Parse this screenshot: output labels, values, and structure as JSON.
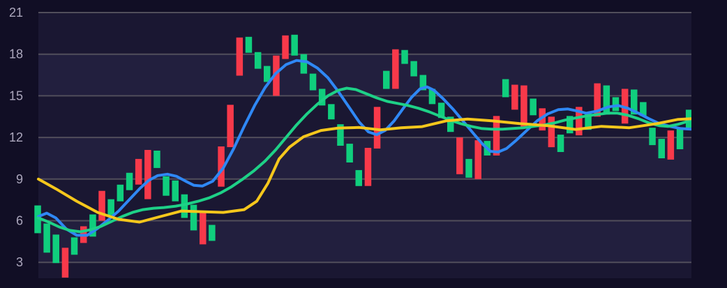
{
  "chart_data": {
    "type": "candlestick",
    "title": "",
    "legend": "none",
    "x_axis": {
      "labels_visible": false
    },
    "y_axis": {
      "side": "left",
      "ticks": [
        21,
        18,
        15,
        12,
        9,
        6,
        3
      ],
      "tick_labels": [
        "21",
        "18",
        "15",
        "12",
        "9",
        "6",
        "3"
      ],
      "min_visible": 1.85,
      "max_visible": 21,
      "grid": true
    },
    "colors": {
      "outer_background": "#110e25",
      "band_dark": "#1a1732",
      "band_light": "#221f3e",
      "gridline": "#514e5b",
      "candle_up_green": "#10ce7d",
      "candle_down_red": "#f8394a",
      "ma_fast_blue": "#2f88f5",
      "ma_mid_green": "#1ed187",
      "ma_slow_yellow": "#f5c71c",
      "axis_label": "#aca7bd"
    },
    "candles_note": "each candle = [body_bottom_value, body_top_value, color g|r]; no wicks drawn",
    "candles": [
      [
        5.1,
        7.1,
        "g"
      ],
      [
        3.7,
        5.8,
        "g"
      ],
      [
        2.95,
        5.0,
        "g"
      ],
      [
        1.9,
        4.05,
        "r"
      ],
      [
        3.55,
        4.8,
        "g"
      ],
      [
        4.4,
        5.6,
        "r"
      ],
      [
        4.85,
        6.45,
        "g"
      ],
      [
        6.0,
        8.15,
        "r"
      ],
      [
        6.4,
        7.55,
        "g"
      ],
      [
        7.4,
        8.6,
        "g"
      ],
      [
        8.2,
        9.45,
        "g"
      ],
      [
        8.6,
        10.45,
        "r"
      ],
      [
        7.55,
        11.1,
        "r"
      ],
      [
        9.8,
        11.05,
        "g"
      ],
      [
        7.8,
        9.2,
        "g"
      ],
      [
        7.4,
        8.9,
        "g"
      ],
      [
        6.2,
        7.9,
        "g"
      ],
      [
        5.3,
        7.15,
        "g"
      ],
      [
        4.3,
        6.6,
        "r"
      ],
      [
        4.55,
        5.7,
        "g"
      ],
      [
        8.45,
        11.35,
        "r"
      ],
      [
        11.3,
        14.35,
        "r"
      ],
      [
        16.45,
        19.2,
        "r"
      ],
      [
        18.1,
        19.25,
        "g"
      ],
      [
        16.95,
        18.15,
        "g"
      ],
      [
        16.0,
        17.15,
        "g"
      ],
      [
        15.0,
        17.9,
        "r"
      ],
      [
        17.65,
        19.35,
        "r"
      ],
      [
        17.9,
        19.4,
        "g"
      ],
      [
        16.6,
        18.0,
        "g"
      ],
      [
        15.4,
        16.6,
        "g"
      ],
      [
        14.3,
        15.5,
        "g"
      ],
      [
        13.3,
        14.4,
        "g"
      ],
      [
        11.4,
        12.95,
        "g"
      ],
      [
        10.2,
        11.55,
        "g"
      ],
      [
        8.5,
        9.65,
        "g"
      ],
      [
        8.5,
        11.25,
        "r"
      ],
      [
        11.2,
        14.2,
        "r"
      ],
      [
        15.5,
        16.8,
        "g"
      ],
      [
        15.5,
        18.35,
        "r"
      ],
      [
        17.3,
        18.3,
        "g"
      ],
      [
        16.4,
        17.5,
        "g"
      ],
      [
        15.4,
        16.5,
        "g"
      ],
      [
        14.4,
        15.5,
        "g"
      ],
      [
        13.4,
        14.5,
        "g"
      ],
      [
        12.4,
        13.5,
        "g"
      ],
      [
        9.35,
        12.0,
        "r"
      ],
      [
        9.1,
        10.45,
        "g"
      ],
      [
        9.0,
        11.8,
        "r"
      ],
      [
        10.7,
        11.75,
        "g"
      ],
      [
        10.7,
        13.55,
        "r"
      ],
      [
        14.9,
        16.2,
        "g"
      ],
      [
        14.0,
        15.8,
        "r"
      ],
      [
        12.7,
        15.75,
        "r"
      ],
      [
        13.6,
        14.8,
        "g"
      ],
      [
        12.5,
        14.1,
        "r"
      ],
      [
        11.3,
        13.5,
        "r"
      ],
      [
        10.95,
        12.2,
        "g"
      ],
      [
        12.3,
        13.55,
        "g"
      ],
      [
        12.15,
        14.2,
        "r"
      ],
      [
        12.55,
        13.8,
        "g"
      ],
      [
        13.5,
        15.9,
        "r"
      ],
      [
        13.65,
        15.75,
        "g"
      ],
      [
        13.9,
        14.9,
        "g"
      ],
      [
        13.0,
        15.5,
        "r"
      ],
      [
        13.65,
        15.45,
        "g"
      ],
      [
        13.55,
        14.55,
        "g"
      ],
      [
        11.45,
        12.7,
        "g"
      ],
      [
        10.5,
        11.9,
        "g"
      ],
      [
        10.4,
        12.5,
        "r"
      ],
      [
        11.15,
        12.7,
        "g"
      ],
      [
        12.7,
        14.0,
        "g"
      ]
    ],
    "series": [
      {
        "name": "ma-fast-blue",
        "color": "#2f88f5",
        "points": [
          [
            55,
            6.3
          ],
          [
            67,
            6.55
          ],
          [
            80,
            6.2
          ],
          [
            95,
            5.4
          ],
          [
            110,
            4.95
          ],
          [
            125,
            4.95
          ],
          [
            140,
            5.45
          ],
          [
            155,
            6.05
          ],
          [
            170,
            6.7
          ],
          [
            185,
            7.5
          ],
          [
            200,
            8.3
          ],
          [
            213,
            8.9
          ],
          [
            226,
            9.25
          ],
          [
            240,
            9.35
          ],
          [
            253,
            9.2
          ],
          [
            266,
            8.85
          ],
          [
            278,
            8.55
          ],
          [
            290,
            8.5
          ],
          [
            305,
            8.85
          ],
          [
            320,
            9.8
          ],
          [
            335,
            11.2
          ],
          [
            350,
            12.8
          ],
          [
            365,
            14.3
          ],
          [
            380,
            15.6
          ],
          [
            395,
            16.6
          ],
          [
            410,
            17.25
          ],
          [
            425,
            17.55
          ],
          [
            440,
            17.45
          ],
          [
            455,
            17.0
          ],
          [
            470,
            16.3
          ],
          [
            485,
            15.3
          ],
          [
            500,
            14.2
          ],
          [
            515,
            13.1
          ],
          [
            528,
            12.4
          ],
          [
            540,
            12.2
          ],
          [
            552,
            12.5
          ],
          [
            565,
            13.2
          ],
          [
            578,
            14.1
          ],
          [
            590,
            14.9
          ],
          [
            602,
            15.5
          ],
          [
            612,
            15.65
          ],
          [
            622,
            15.4
          ],
          [
            635,
            14.8
          ],
          [
            650,
            14.0
          ],
          [
            665,
            13.1
          ],
          [
            680,
            12.2
          ],
          [
            692,
            11.5
          ],
          [
            703,
            11.0
          ],
          [
            714,
            10.95
          ],
          [
            726,
            11.2
          ],
          [
            740,
            11.8
          ],
          [
            755,
            12.5
          ],
          [
            770,
            13.2
          ],
          [
            785,
            13.7
          ],
          [
            800,
            14.0
          ],
          [
            814,
            14.05
          ],
          [
            828,
            13.9
          ],
          [
            840,
            13.75
          ],
          [
            856,
            13.9
          ],
          [
            872,
            14.2
          ],
          [
            886,
            14.3
          ],
          [
            900,
            14.1
          ],
          [
            915,
            13.75
          ],
          [
            930,
            13.35
          ],
          [
            945,
            13.0
          ],
          [
            960,
            12.8
          ],
          [
            975,
            12.65
          ],
          [
            991,
            12.6
          ]
        ]
      },
      {
        "name": "ma-mid-green",
        "color": "#1ed187",
        "points": [
          [
            55,
            6.2
          ],
          [
            70,
            5.9
          ],
          [
            85,
            5.55
          ],
          [
            100,
            5.3
          ],
          [
            115,
            5.2
          ],
          [
            130,
            5.35
          ],
          [
            145,
            5.6
          ],
          [
            160,
            5.95
          ],
          [
            175,
            6.3
          ],
          [
            190,
            6.6
          ],
          [
            205,
            6.8
          ],
          [
            220,
            6.9
          ],
          [
            235,
            6.95
          ],
          [
            252,
            7.05
          ],
          [
            268,
            7.2
          ],
          [
            284,
            7.4
          ],
          [
            300,
            7.65
          ],
          [
            316,
            8.0
          ],
          [
            332,
            8.45
          ],
          [
            348,
            9.0
          ],
          [
            364,
            9.6
          ],
          [
            380,
            10.3
          ],
          [
            395,
            11.1
          ],
          [
            410,
            12.0
          ],
          [
            425,
            12.9
          ],
          [
            440,
            13.7
          ],
          [
            455,
            14.4
          ],
          [
            470,
            15.0
          ],
          [
            485,
            15.4
          ],
          [
            497,
            15.55
          ],
          [
            510,
            15.45
          ],
          [
            525,
            15.15
          ],
          [
            540,
            14.85
          ],
          [
            555,
            14.6
          ],
          [
            570,
            14.45
          ],
          [
            585,
            14.3
          ],
          [
            600,
            14.1
          ],
          [
            615,
            13.85
          ],
          [
            630,
            13.55
          ],
          [
            645,
            13.25
          ],
          [
            660,
            13.0
          ],
          [
            675,
            12.8
          ],
          [
            690,
            12.65
          ],
          [
            705,
            12.6
          ],
          [
            720,
            12.6
          ],
          [
            735,
            12.65
          ],
          [
            750,
            12.7
          ],
          [
            765,
            12.8
          ],
          [
            780,
            12.9
          ],
          [
            795,
            13.05
          ],
          [
            810,
            13.25
          ],
          [
            825,
            13.4
          ],
          [
            840,
            13.55
          ],
          [
            855,
            13.65
          ],
          [
            870,
            13.75
          ],
          [
            885,
            13.75
          ],
          [
            900,
            13.6
          ],
          [
            915,
            13.35
          ],
          [
            930,
            13.05
          ],
          [
            945,
            12.85
          ],
          [
            958,
            12.8
          ],
          [
            972,
            12.95
          ],
          [
            982,
            13.1
          ],
          [
            991,
            13.3
          ]
        ]
      },
      {
        "name": "ma-slow-yellow",
        "color": "#f5c71c",
        "points": [
          [
            55,
            9.0
          ],
          [
            80,
            8.3
          ],
          [
            110,
            7.4
          ],
          [
            140,
            6.6
          ],
          [
            170,
            6.1
          ],
          [
            200,
            5.9
          ],
          [
            230,
            6.3
          ],
          [
            260,
            6.7
          ],
          [
            290,
            6.65
          ],
          [
            320,
            6.6
          ],
          [
            350,
            6.8
          ],
          [
            368,
            7.4
          ],
          [
            384,
            8.7
          ],
          [
            400,
            10.45
          ],
          [
            415,
            11.3
          ],
          [
            435,
            12.05
          ],
          [
            460,
            12.5
          ],
          [
            485,
            12.68
          ],
          [
            515,
            12.72
          ],
          [
            545,
            12.55
          ],
          [
            575,
            12.7
          ],
          [
            605,
            12.78
          ],
          [
            640,
            13.2
          ],
          [
            670,
            13.32
          ],
          [
            705,
            13.2
          ],
          [
            745,
            13.0
          ],
          [
            785,
            12.85
          ],
          [
            825,
            12.58
          ],
          [
            862,
            12.8
          ],
          [
            902,
            12.7
          ],
          [
            942,
            13.0
          ],
          [
            972,
            13.3
          ],
          [
            991,
            13.35
          ]
        ]
      }
    ]
  }
}
